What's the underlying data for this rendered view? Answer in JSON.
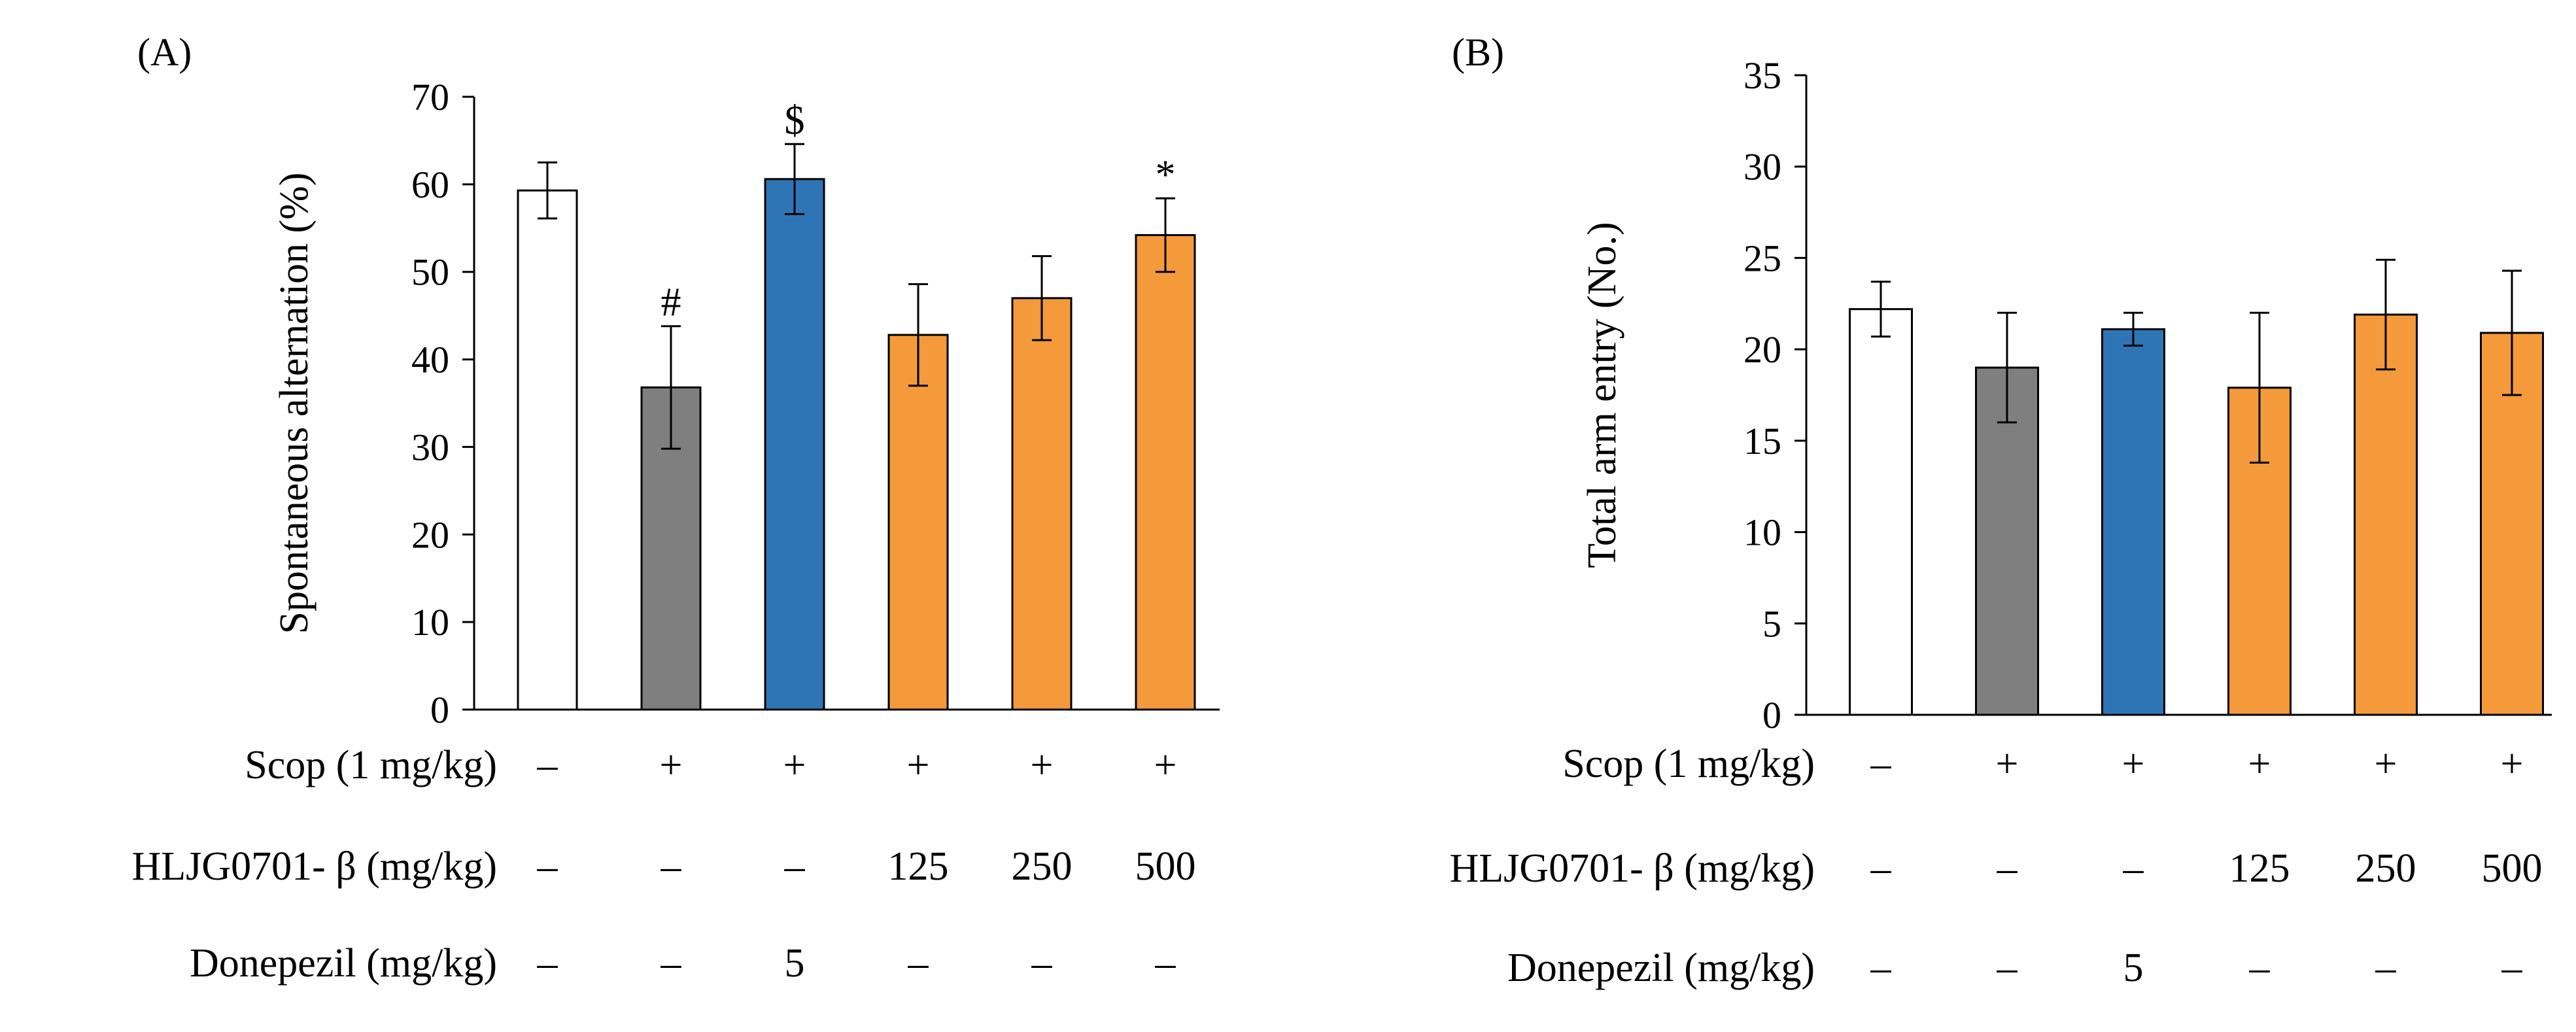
{
  "chart_data": [
    {
      "type": "bar",
      "panel_label": "(A)",
      "ylabel": "Spontaneous alternation (%)",
      "xlabel": "",
      "ylim": [
        0,
        70
      ],
      "yticks": [
        0,
        10,
        20,
        30,
        40,
        50,
        60,
        70
      ],
      "grid": false,
      "legend": "none",
      "values": [
        59.3,
        36.8,
        60.6,
        42.8,
        47.0,
        54.2
      ],
      "errors": [
        3.2,
        7.0,
        4.0,
        5.8,
        4.8,
        4.2
      ],
      "colors": [
        "#ffffff",
        "#7f7f7f",
        "#2e75b6",
        "#f59a3b",
        "#f59a3b",
        "#f59a3b"
      ],
      "annotations": [
        "",
        "#",
        "$",
        "",
        "",
        "*"
      ],
      "rows": [
        {
          "label": "Scop (1 mg/kg)",
          "cells": [
            "–",
            "+",
            "+",
            "+",
            "+",
            "+"
          ]
        },
        {
          "label": "HLJG0701- β (mg/kg)",
          "cells": [
            "–",
            "–",
            "–",
            "125",
            "250",
            "500"
          ]
        },
        {
          "label": "Donepezil (mg/kg)",
          "cells": [
            "–",
            "–",
            "5",
            "–",
            "–",
            "–"
          ]
        }
      ]
    },
    {
      "type": "bar",
      "panel_label": "(B)",
      "ylabel": "Total arm entry (No.)",
      "xlabel": "",
      "ylim": [
        0,
        35
      ],
      "yticks": [
        0,
        5,
        10,
        15,
        20,
        25,
        30,
        35
      ],
      "grid": false,
      "legend": "none",
      "values": [
        22.2,
        19.0,
        21.1,
        17.9,
        21.9,
        20.9
      ],
      "errors": [
        1.5,
        3.0,
        0.9,
        4.1,
        3.0,
        3.4
      ],
      "colors": [
        "#ffffff",
        "#7f7f7f",
        "#2e75b6",
        "#f59a3b",
        "#f59a3b",
        "#f59a3b"
      ],
      "annotations": [
        "",
        "",
        "",
        "",
        "",
        ""
      ],
      "rows": [
        {
          "label": "Scop (1 mg/kg)",
          "cells": [
            "–",
            "+",
            "+",
            "+",
            "+",
            "+"
          ]
        },
        {
          "label": "HLJG0701- β (mg/kg)",
          "cells": [
            "–",
            "–",
            "–",
            "125",
            "250",
            "500"
          ]
        },
        {
          "label": "Donepezil (mg/kg)",
          "cells": [
            "–",
            "–",
            "5",
            "–",
            "–",
            "–"
          ]
        }
      ]
    }
  ]
}
